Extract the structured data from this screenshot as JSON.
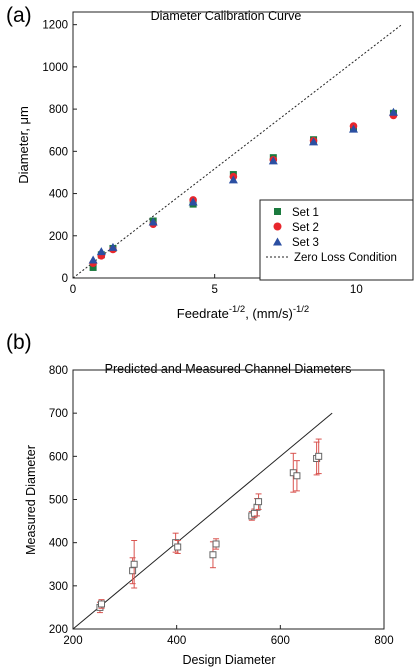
{
  "chart_data": [
    {
      "panel_label": "(a)",
      "type": "scatter",
      "title": "Diameter Calibration Curve",
      "xlabel": "Feedrate",
      "xlabel_sup1": "-1/2",
      "xlabel_mid": ", (mm/s)",
      "xlabel_sup2": "-1/2",
      "ylabel": "Diameter, μm",
      "xlim": [
        0,
        12
      ],
      "ylim": [
        0,
        1260
      ],
      "xticks": [
        0,
        5,
        10
      ],
      "xtick_labels": [
        "0",
        "5",
        "10"
      ],
      "yticks": [
        0,
        200,
        400,
        600,
        800,
        1000,
        1200
      ],
      "ytick_labels": [
        "0",
        "200",
        "400",
        "600",
        "800",
        "1000",
        "1200"
      ],
      "grid": false,
      "legend_position": "lower-right",
      "series": [
        {
          "name": "Set 1",
          "marker": "square",
          "color": "#1b7a3e",
          "x": [
            0.71,
            1.0,
            1.41,
            2.83,
            4.24,
            5.66,
            7.07,
            8.49,
            9.9,
            11.31
          ],
          "y": [
            50,
            110,
            140,
            270,
            350,
            490,
            570,
            655,
            710,
            780
          ]
        },
        {
          "name": "Set 2",
          "marker": "circle",
          "color": "#e8262c",
          "x": [
            0.71,
            1.0,
            1.41,
            2.83,
            4.24,
            5.66,
            7.07,
            8.49,
            9.9,
            11.31
          ],
          "y": [
            70,
            105,
            135,
            255,
            370,
            480,
            560,
            650,
            720,
            770
          ]
        },
        {
          "name": "Set 3",
          "marker": "triangle",
          "color": "#2b4fa2",
          "x": [
            0.71,
            1.0,
            1.41,
            2.83,
            4.24,
            5.66,
            7.07,
            8.49,
            9.9,
            11.31
          ],
          "y": [
            85,
            125,
            145,
            265,
            360,
            465,
            555,
            645,
            705,
            785
          ]
        },
        {
          "name": "Zero Loss Condition",
          "type": "line",
          "style": "dashed",
          "color": "#222222",
          "x": [
            0,
            11.6
          ],
          "y": [
            0,
            1200
          ]
        }
      ]
    },
    {
      "panel_label": "(b)",
      "type": "scatter",
      "title": "Predicted and Measured Channel Diameters",
      "xlabel": "Design Diameter",
      "ylabel": "Measured Diameter",
      "xlim": [
        200,
        800
      ],
      "ylim": [
        200,
        800
      ],
      "xticks": [
        200,
        400,
        600,
        800
      ],
      "xtick_labels": [
        "200",
        "400",
        "600",
        "800"
      ],
      "yticks": [
        200,
        300,
        400,
        500,
        600,
        700,
        800
      ],
      "ytick_labels": [
        "200",
        "300",
        "400",
        "500",
        "600",
        "700",
        "800"
      ],
      "grid": false,
      "series": [
        {
          "marker": "open-square",
          "color": "#666666",
          "error_color": "#d9534f",
          "x": [
            252,
            255,
            315,
            318,
            398,
            402,
            470,
            476,
            545,
            550,
            555,
            558,
            625,
            632,
            670,
            674
          ],
          "y": [
            250,
            258,
            335,
            350,
            400,
            390,
            372,
            397,
            462,
            468,
            482,
            495,
            562,
            555,
            595,
            600
          ],
          "yerr": [
            12,
            10,
            30,
            55,
            22,
            15,
            30,
            12,
            10,
            10,
            20,
            18,
            45,
            35,
            38,
            40
          ]
        },
        {
          "type": "line",
          "style": "solid",
          "color": "#222222",
          "x": [
            200,
            700
          ],
          "y": [
            200,
            700
          ]
        }
      ]
    }
  ]
}
